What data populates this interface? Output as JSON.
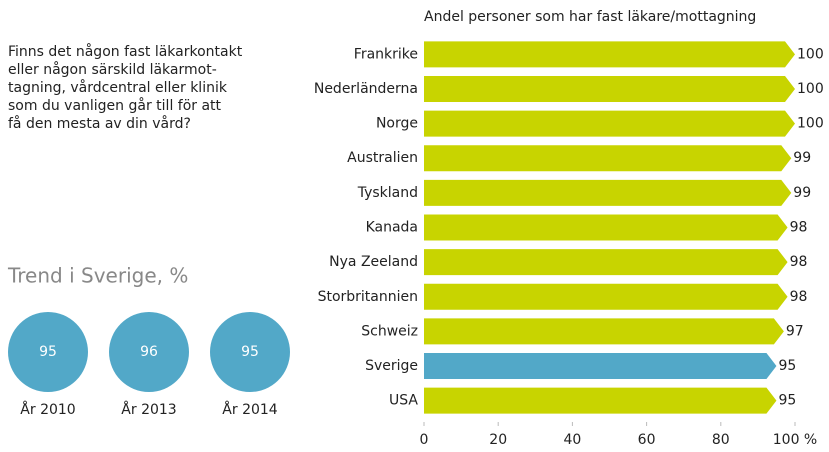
{
  "question": [
    "Finns det någon fast läkarkontakt",
    "eller någon särskild läkarmot-",
    "tagning, vårdcentral eller klinik",
    "som du vanligen går till för att",
    "få den mesta av din vård?"
  ],
  "trend": {
    "title": "Trend i Sverige, %",
    "color": "#52a8c8",
    "items": [
      {
        "year": "År 2010",
        "value": 95
      },
      {
        "year": "År 2013",
        "value": 96
      },
      {
        "year": "År 2014",
        "value": 95
      }
    ]
  },
  "chart_data": {
    "type": "bar",
    "orientation": "horizontal",
    "title": "Andel personer som har fast läkare/mottagning",
    "categories": [
      "Frankrike",
      "Nederländerna",
      "Norge",
      "Australien",
      "Tyskland",
      "Kanada",
      "Nya Zeeland",
      "Storbritannien",
      "Schweiz",
      "Sverige",
      "USA"
    ],
    "values": [
      100,
      100,
      100,
      99,
      99,
      98,
      98,
      98,
      97,
      95,
      95
    ],
    "colors": [
      "#c8d400",
      "#c8d400",
      "#c8d400",
      "#c8d400",
      "#c8d400",
      "#c8d400",
      "#c8d400",
      "#c8d400",
      "#c8d400",
      "#52a8c8",
      "#c8d400"
    ],
    "xlim": [
      0,
      100
    ],
    "xticks": [
      0,
      20,
      40,
      60,
      80,
      {
        "value": 100,
        "label": "100 %"
      }
    ],
    "grid": false
  }
}
